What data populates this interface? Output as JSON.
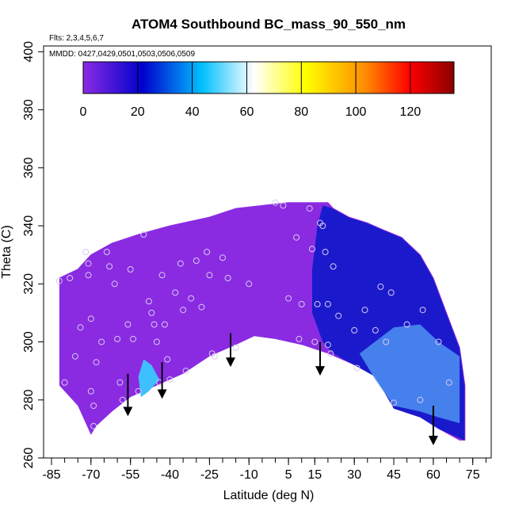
{
  "chart_data": {
    "type": "heatmap",
    "title": "ATOM4 Southbound BC_mass_90_550_nm",
    "flights_label": "Flts: 2,3,4,5,6,7",
    "dates_label": "MMDD: 0427,0429,0501,0503,0506,0509",
    "xlabel": "Latitude (deg N)",
    "ylabel": "Theta (C)",
    "xlim": [
      -88,
      82
    ],
    "ylim": [
      260,
      402
    ],
    "x_tick_labels": [
      "-85",
      "-70",
      "-55",
      "-40",
      "-25",
      "-10",
      "5",
      "15",
      "30",
      "45",
      "60",
      "75"
    ],
    "y_tick_labels": [
      "260",
      "280",
      "300",
      "320",
      "340",
      "360",
      "380",
      "400"
    ],
    "colorbar": {
      "range": [
        0,
        136
      ],
      "tick_values": [
        0,
        20,
        40,
        60,
        80,
        100,
        120
      ],
      "tick_labels": [
        "0",
        "20",
        "40",
        "60",
        "80",
        "100",
        "120"
      ],
      "colors": [
        "#8a2be2",
        "#0000cd",
        "#00bfff",
        "#ffffff",
        "#ffff00",
        "#ff8c00",
        "#ff0000",
        "#8b0000"
      ]
    },
    "colors": {
      "low": "#8a2be2",
      "mid_blue": "#1a1acc",
      "light_blue": "#4a8cf0",
      "cyan": "#3ec0ff"
    },
    "coverage_region": {
      "top": [
        [
          -82,
          322
        ],
        [
          -75,
          325
        ],
        [
          -70,
          330
        ],
        [
          -62,
          334
        ],
        [
          -52,
          337
        ],
        [
          -40,
          340
        ],
        [
          -25,
          343
        ],
        [
          -15,
          346
        ],
        [
          -5,
          347
        ],
        [
          5,
          348
        ],
        [
          12,
          348
        ],
        [
          20,
          348
        ],
        [
          22,
          346
        ],
        [
          28,
          343
        ],
        [
          35,
          341
        ],
        [
          40,
          339
        ],
        [
          48,
          336
        ],
        [
          55,
          330
        ],
        [
          60,
          322
        ],
        [
          65,
          310
        ],
        [
          70,
          298
        ],
        [
          72,
          285
        ],
        [
          72,
          266
        ]
      ],
      "bottom": [
        [
          70,
          266
        ],
        [
          62,
          270
        ],
        [
          55,
          274
        ],
        [
          45,
          277
        ],
        [
          38,
          288
        ],
        [
          30,
          292
        ],
        [
          20,
          296
        ],
        [
          10,
          299
        ],
        [
          0,
          301
        ],
        [
          -8,
          302
        ],
        [
          -15,
          299
        ],
        [
          -25,
          295
        ],
        [
          -35,
          289
        ],
        [
          -45,
          285
        ],
        [
          -55,
          281
        ],
        [
          -62,
          276
        ],
        [
          -68,
          271
        ],
        [
          -70,
          268
        ],
        [
          -75,
          278
        ],
        [
          -82,
          285
        ]
      ]
    },
    "blue_region": [
      [
        18,
        347
      ],
      [
        22,
        346
      ],
      [
        28,
        343
      ],
      [
        35,
        341
      ],
      [
        40,
        339
      ],
      [
        48,
        336
      ],
      [
        55,
        330
      ],
      [
        60,
        322
      ],
      [
        65,
        310
      ],
      [
        70,
        298
      ],
      [
        72,
        285
      ],
      [
        72,
        266
      ],
      [
        62,
        270
      ],
      [
        55,
        274
      ],
      [
        45,
        277
      ],
      [
        38,
        288
      ],
      [
        30,
        292
      ],
      [
        22,
        296
      ],
      [
        18,
        300
      ],
      [
        14,
        310
      ],
      [
        14,
        325
      ],
      [
        16,
        340
      ]
    ],
    "light_blue_region": [
      [
        32,
        296
      ],
      [
        45,
        305
      ],
      [
        55,
        306
      ],
      [
        62,
        300
      ],
      [
        70,
        295
      ],
      [
        70,
        272
      ],
      [
        62,
        274
      ],
      [
        55,
        276
      ],
      [
        45,
        278
      ],
      [
        38,
        287
      ]
    ],
    "cyan_region": [
      [
        -50,
        294
      ],
      [
        -47,
        292
      ],
      [
        -44,
        287
      ],
      [
        -48,
        283
      ],
      [
        -51,
        281
      ],
      [
        -52,
        288
      ]
    ],
    "sample_points": [
      [
        -82,
        321
      ],
      [
        -80,
        286
      ],
      [
        -78,
        322
      ],
      [
        -76,
        295
      ],
      [
        -74,
        305
      ],
      [
        -72,
        331
      ],
      [
        -71,
        327
      ],
      [
        -71,
        323
      ],
      [
        -70,
        308
      ],
      [
        -70,
        283
      ],
      [
        -69,
        278
      ],
      [
        -69,
        271
      ],
      [
        -68,
        293
      ],
      [
        -66,
        300
      ],
      [
        -64,
        331
      ],
      [
        -63,
        326
      ],
      [
        -61,
        320
      ],
      [
        -60,
        301
      ],
      [
        -59,
        286
      ],
      [
        -58,
        280
      ],
      [
        -56,
        306
      ],
      [
        -55,
        325
      ],
      [
        -54,
        301
      ],
      [
        -52,
        283
      ],
      [
        -50,
        337
      ],
      [
        -48,
        314
      ],
      [
        -47,
        310
      ],
      [
        -46,
        306
      ],
      [
        -45,
        300
      ],
      [
        -44,
        286
      ],
      [
        -43,
        323
      ],
      [
        -42,
        306
      ],
      [
        -41,
        294
      ],
      [
        -40,
        287
      ],
      [
        -38,
        317
      ],
      [
        -36,
        327
      ],
      [
        -35,
        311
      ],
      [
        -34,
        290
      ],
      [
        -32,
        315
      ],
      [
        -30,
        328
      ],
      [
        -28,
        312
      ],
      [
        -26,
        331
      ],
      [
        -25,
        323
      ],
      [
        -24,
        296
      ],
      [
        -23,
        295
      ],
      [
        -20,
        329
      ],
      [
        -18,
        322
      ],
      [
        -15,
        298
      ],
      [
        -10,
        320
      ],
      [
        0,
        348
      ],
      [
        3,
        347
      ],
      [
        5,
        315
      ],
      [
        8,
        336
      ],
      [
        9,
        301
      ],
      [
        10,
        313
      ],
      [
        13,
        346
      ],
      [
        14,
        332
      ],
      [
        15,
        300
      ],
      [
        16,
        313
      ],
      [
        17,
        341
      ],
      [
        18,
        340
      ],
      [
        19,
        331
      ],
      [
        20,
        313
      ],
      [
        20,
        299
      ],
      [
        21,
        296
      ],
      [
        22,
        326
      ],
      [
        24,
        309
      ],
      [
        30,
        304
      ],
      [
        31,
        291
      ],
      [
        34,
        311
      ],
      [
        38,
        304
      ],
      [
        40,
        319
      ],
      [
        42,
        300
      ],
      [
        44,
        317
      ],
      [
        45,
        279
      ],
      [
        50,
        306
      ],
      [
        55,
        280
      ],
      [
        56,
        311
      ],
      [
        62,
        300
      ],
      [
        66,
        286
      ]
    ],
    "annotation_arrows": [
      [
        -56,
        289,
        276
      ],
      [
        -43,
        293,
        282
      ],
      [
        -17,
        303,
        293
      ],
      [
        17,
        300,
        290
      ],
      [
        60,
        278,
        266
      ]
    ]
  }
}
